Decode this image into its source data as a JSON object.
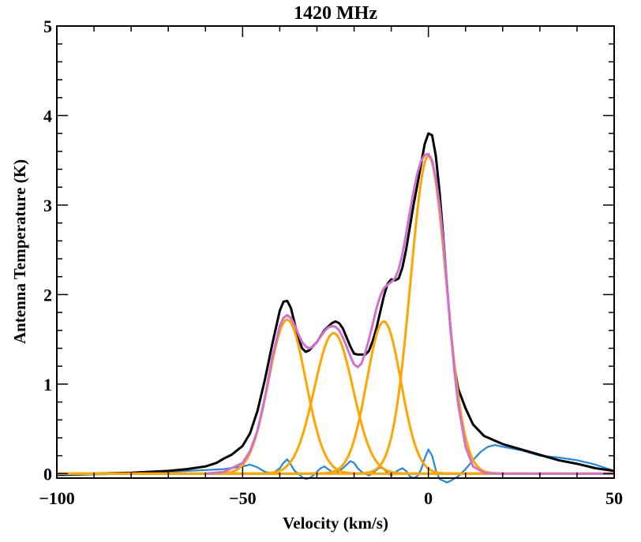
{
  "chart_data": {
    "type": "line",
    "title": "1420 MHz",
    "xlabel": "Velocity (km/s)",
    "ylabel": "Antenna Temperature (K)",
    "xlim": [
      -100,
      50
    ],
    "ylim": [
      -0.05,
      5.0
    ],
    "x_ticks": [
      -100,
      -50,
      0,
      50
    ],
    "x_tick_labels": [
      "−100",
      "−50",
      "0",
      "50"
    ],
    "y_ticks": [
      0,
      1,
      2,
      3,
      4,
      5
    ],
    "y_tick_labels": [
      "0",
      "1",
      "2",
      "3",
      "4",
      "5"
    ],
    "grid": false,
    "legend": "none",
    "colors": {
      "observed": "#000000",
      "residual": "#1e88e5",
      "components": "#ffa500",
      "total_fit": "#d070d0"
    },
    "series": [
      {
        "role": "observed",
        "x": [
          -100,
          -90,
          -80,
          -70,
          -65,
          -60,
          -57,
          -55,
          -53,
          -50,
          -48,
          -46,
          -44,
          -42,
          -40,
          -39,
          -38,
          -37,
          -36,
          -35,
          -34,
          -33,
          -32,
          -30,
          -28,
          -26,
          -25,
          -24,
          -23,
          -22,
          -21,
          -20,
          -19,
          -18,
          -17,
          -16,
          -15,
          -14,
          -13,
          -12,
          -11,
          -10,
          -9,
          -8,
          -7,
          -6,
          -5,
          -4,
          -3,
          -2,
          -1,
          0,
          1,
          2,
          3,
          4,
          5,
          6,
          7,
          8,
          10,
          12,
          15,
          20,
          25,
          30,
          35,
          40,
          45,
          50
        ],
        "y": [
          -0.01,
          0.0,
          0.01,
          0.03,
          0.05,
          0.08,
          0.12,
          0.17,
          0.21,
          0.31,
          0.45,
          0.7,
          1.05,
          1.45,
          1.82,
          1.92,
          1.93,
          1.85,
          1.68,
          1.52,
          1.4,
          1.36,
          1.38,
          1.47,
          1.6,
          1.68,
          1.7,
          1.68,
          1.62,
          1.52,
          1.42,
          1.34,
          1.33,
          1.33,
          1.33,
          1.37,
          1.48,
          1.62,
          1.8,
          1.98,
          2.12,
          2.17,
          2.16,
          2.18,
          2.3,
          2.5,
          2.75,
          3.0,
          3.22,
          3.45,
          3.68,
          3.8,
          3.78,
          3.55,
          3.15,
          2.65,
          2.1,
          1.6,
          1.2,
          0.95,
          0.73,
          0.55,
          0.42,
          0.33,
          0.27,
          0.21,
          0.15,
          0.11,
          0.06,
          0.03
        ]
      },
      {
        "role": "residual",
        "x": [
          -100,
          -90,
          -80,
          -70,
          -60,
          -55,
          -50,
          -48,
          -46,
          -44,
          -42,
          -40,
          -39,
          -38,
          -37,
          -36,
          -35,
          -34,
          -33,
          -32,
          -31,
          -30,
          -29,
          -28,
          -27,
          -26,
          -25,
          -24,
          -23,
          -22,
          -21,
          -20,
          -19,
          -18,
          -17,
          -16,
          -15,
          -14,
          -13,
          -12,
          -11,
          -10,
          -9,
          -8,
          -7,
          -6,
          -5,
          -4,
          -3,
          -2,
          -1,
          0,
          1,
          2,
          3,
          4,
          5,
          6,
          8,
          10,
          12,
          14,
          16,
          18,
          20,
          25,
          30,
          35,
          40,
          45,
          50
        ],
        "y": [
          -0.02,
          -0.01,
          0.0,
          0.02,
          0.04,
          0.05,
          0.08,
          0.1,
          0.07,
          0.02,
          0.0,
          0.06,
          0.12,
          0.16,
          0.1,
          0.03,
          0.0,
          -0.04,
          -0.06,
          -0.05,
          -0.02,
          0.02,
          0.06,
          0.08,
          0.05,
          0.02,
          0.0,
          0.03,
          0.06,
          0.1,
          0.14,
          0.12,
          0.06,
          0.02,
          0.0,
          -0.02,
          0.0,
          0.04,
          0.07,
          0.05,
          0.01,
          -0.02,
          0.01,
          0.04,
          0.06,
          0.03,
          -0.03,
          -0.05,
          -0.03,
          0.04,
          0.17,
          0.27,
          0.2,
          0.04,
          -0.06,
          -0.08,
          -0.1,
          -0.08,
          -0.03,
          0.05,
          0.15,
          0.24,
          0.3,
          0.32,
          0.3,
          0.26,
          0.2,
          0.18,
          0.15,
          0.1,
          0.03
        ]
      },
      {
        "role": "total_fit",
        "x": [
          -60,
          -55,
          -50,
          -48,
          -46,
          -44,
          -42,
          -40,
          -39,
          -38,
          -37,
          -36,
          -35,
          -34,
          -33,
          -32,
          -31,
          -30,
          -29,
          -28,
          -27,
          -26,
          -25,
          -24,
          -23,
          -22,
          -21,
          -20,
          -19,
          -18,
          -17,
          -16,
          -15,
          -14,
          -13,
          -12,
          -11,
          -10,
          -9,
          -8,
          -7,
          -6,
          -5,
          -4,
          -3,
          -2,
          -1,
          0,
          1,
          2,
          3,
          4,
          5,
          6,
          7,
          8,
          10,
          12,
          15,
          20,
          30,
          40,
          50
        ],
        "y": [
          0.0,
          0.02,
          0.12,
          0.25,
          0.48,
          0.85,
          1.3,
          1.65,
          1.74,
          1.77,
          1.74,
          1.66,
          1.56,
          1.47,
          1.42,
          1.4,
          1.42,
          1.47,
          1.53,
          1.59,
          1.63,
          1.65,
          1.64,
          1.6,
          1.52,
          1.42,
          1.31,
          1.22,
          1.19,
          1.23,
          1.35,
          1.5,
          1.67,
          1.84,
          1.98,
          2.07,
          2.11,
          2.14,
          2.18,
          2.28,
          2.45,
          2.68,
          2.92,
          3.15,
          3.35,
          3.49,
          3.56,
          3.57,
          3.5,
          3.3,
          3.0,
          2.6,
          2.1,
          1.6,
          1.15,
          0.78,
          0.3,
          0.08,
          0.01,
          0.0,
          0.0,
          0.0,
          0.0
        ]
      }
    ],
    "components": [
      {
        "role": "component",
        "amplitude": 1.72,
        "center": -38.0,
        "sigma": 5.0
      },
      {
        "role": "component",
        "amplitude": 1.57,
        "center": -25.5,
        "sigma": 5.2
      },
      {
        "role": "component",
        "amplitude": 1.7,
        "center": -12.0,
        "sigma": 4.6
      },
      {
        "role": "component",
        "amplitude": 3.55,
        "center": 0.0,
        "sigma": 4.8
      }
    ]
  }
}
